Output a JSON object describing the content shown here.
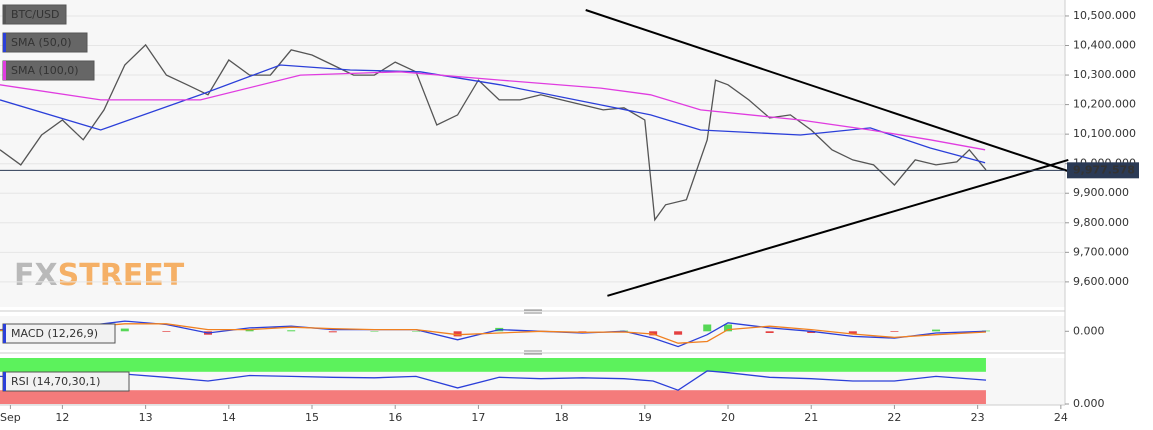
{
  "shared_x": {
    "xlim": [
      11.25,
      24.05
    ],
    "xticks": [
      {
        "value": 11.375,
        "label": "Sep"
      },
      12,
      13,
      14,
      15,
      16,
      17,
      18,
      19,
      20,
      21,
      22,
      23,
      24
    ]
  },
  "chart_data": [
    {
      "type": "line",
      "watermark": [
        "FX",
        "STREET"
      ],
      "grid": true,
      "ylim": [
        9515,
        10554
      ],
      "yticks": [
        {
          "value": 9600,
          "label": "9,600.000"
        },
        {
          "value": 9700,
          "label": "9,700.000"
        },
        {
          "value": 9800,
          "label": "9,800.000"
        },
        {
          "value": 9900,
          "label": "9,900.000"
        },
        {
          "value": 10000,
          "label": "10,000.000"
        },
        {
          "value": 10100,
          "label": "10,100.000"
        },
        {
          "value": 10200,
          "label": "10,200.000"
        },
        {
          "value": 10300,
          "label": "10,300.000"
        },
        {
          "value": 10400,
          "label": "10,400.000"
        },
        {
          "value": 10500,
          "label": "10,500.000"
        }
      ],
      "last_value": {
        "value": 9977.578,
        "label": "9,977.578"
      },
      "series": [
        {
          "name": "BTC/USD",
          "color": "#555555",
          "x": [
            11.25,
            11.5,
            11.75,
            12,
            12.25,
            12.5,
            12.75,
            13,
            13.25,
            13.5,
            13.75,
            14,
            14.25,
            14.5,
            14.75,
            15,
            15.25,
            15.5,
            15.75,
            16,
            16.25,
            16.5,
            16.75,
            17,
            17.25,
            17.5,
            17.75,
            18,
            18.25,
            18.5,
            18.75,
            19,
            19.12,
            19.25,
            19.5,
            19.75,
            19.85,
            20,
            20.25,
            20.5,
            20.75,
            21,
            21.25,
            21.5,
            21.75,
            22,
            22.25,
            22.5,
            22.75,
            22.9,
            23.1
          ],
          "values": [
            10047,
            9996,
            10097,
            10148,
            10081,
            10182,
            10334,
            10402,
            10300,
            10267,
            10233,
            10351,
            10300,
            10300,
            10385,
            10368,
            10334,
            10300,
            10300,
            10344,
            10311,
            10131,
            10165,
            10283,
            10216,
            10216,
            10233,
            10216,
            10199,
            10182,
            10189,
            10148,
            9810,
            9861,
            9878,
            10081,
            10283,
            10267,
            10216,
            10155,
            10165,
            10114,
            10047,
            10013,
            9996,
            9928,
            10013,
            9996,
            10006,
            10047,
            9979
          ]
        },
        {
          "name": "SMA (50,0)",
          "color": "#2b3fd9",
          "x": [
            11.25,
            12.46,
            13.66,
            14.62,
            15.46,
            16.3,
            17.26,
            18.47,
            19.07,
            19.67,
            20.87,
            21.71,
            22.43,
            23.09
          ],
          "values": [
            10216,
            10114,
            10233,
            10334,
            10317,
            10311,
            10267,
            10199,
            10165,
            10114,
            10097,
            10121,
            10053,
            10003
          ]
        },
        {
          "name": "SMA (100,0)",
          "color": "#e03ce0",
          "x": [
            11.25,
            12.46,
            13.66,
            14.86,
            16.06,
            17.26,
            18.47,
            19.07,
            19.67,
            20.87,
            21.71,
            22.43,
            23.09
          ],
          "values": [
            10267,
            10216,
            10216,
            10300,
            10311,
            10283,
            10256,
            10233,
            10182,
            10148,
            10114,
            10081,
            10047
          ]
        }
      ],
      "trendlines": [
        {
          "color": "#000000",
          "x": [
            18.29,
            24.12
          ],
          "y": [
            10520,
            9972
          ]
        },
        {
          "color": "#000000",
          "x": [
            18.55,
            24.09
          ],
          "y": [
            9553,
            10013
          ]
        }
      ]
    },
    {
      "type": "line",
      "title": "MACD (12,26,9)",
      "ylim": [
        -55,
        45
      ],
      "yticks": [
        {
          "value": 0,
          "label": "0.000"
        }
      ],
      "series": [
        {
          "style": "histogram",
          "color": "#3ad13a",
          "negative_color": "#e02020",
          "x": [
            11.25,
            11.75,
            12.25,
            12.75,
            13.25,
            13.75,
            14.25,
            14.75,
            15.25,
            15.75,
            16.25,
            16.75,
            17.25,
            17.75,
            18.25,
            18.75,
            19.1,
            19.4,
            19.75,
            20,
            20.5,
            21,
            21.5,
            22,
            22.5,
            23.1
          ],
          "values": [
            2,
            2,
            3,
            8,
            -2,
            -10,
            5,
            3,
            -3,
            0,
            0,
            -15,
            10,
            0,
            -2,
            2,
            -12,
            -10,
            20,
            20,
            -5,
            -5,
            -7,
            -2,
            5,
            2
          ]
        },
        {
          "color": "#2b3fd9",
          "x": [
            11.25,
            11.75,
            12.25,
            12.75,
            13.25,
            13.75,
            14.25,
            14.75,
            15.25,
            15.75,
            16.25,
            16.75,
            17.25,
            17.75,
            18.25,
            18.75,
            19.1,
            19.4,
            19.75,
            20,
            20.5,
            21,
            21.5,
            22,
            22.5,
            23.1
          ],
          "values": [
            5,
            10,
            15,
            30,
            20,
            -5,
            10,
            15,
            5,
            5,
            5,
            -25,
            5,
            0,
            -5,
            0,
            -20,
            -45,
            -10,
            25,
            10,
            0,
            -15,
            -20,
            -5,
            0
          ]
        },
        {
          "color": "#f08020",
          "x": [
            11.25,
            11.75,
            12.25,
            12.75,
            13.25,
            13.75,
            14.25,
            14.75,
            15.25,
            15.75,
            16.25,
            16.75,
            17.25,
            17.75,
            18.25,
            18.75,
            19.1,
            19.4,
            19.75,
            20,
            20.5,
            21,
            21.5,
            22,
            22.5,
            23.1
          ],
          "values": [
            3,
            8,
            12,
            22,
            22,
            5,
            5,
            12,
            8,
            5,
            5,
            -10,
            -5,
            0,
            -3,
            -2,
            -8,
            -35,
            -30,
            5,
            15,
            5,
            -8,
            -18,
            -10,
            -2
          ]
        }
      ]
    },
    {
      "type": "line",
      "title": "RSI (14,70,30,1)",
      "ylim": [
        0,
        100
      ],
      "yticks": [
        {
          "value": 0,
          "label": "0.000"
        }
      ],
      "bands": [
        {
          "from": 70,
          "to": 100,
          "color": "#5cf25c"
        },
        {
          "from": 0,
          "to": 30,
          "color": "#f47b7b"
        }
      ],
      "series": [
        {
          "color": "#2b3fd9",
          "x": [
            11.25,
            11.75,
            12.25,
            12.75,
            13.25,
            13.75,
            14.25,
            14.75,
            15.25,
            15.75,
            16.25,
            16.75,
            17.25,
            17.75,
            18.25,
            18.75,
            19.1,
            19.4,
            19.75,
            20,
            20.5,
            21,
            21.5,
            22,
            22.5,
            23.1
          ],
          "values": [
            60,
            58,
            62,
            65,
            58,
            50,
            62,
            60,
            58,
            57,
            60,
            35,
            58,
            55,
            57,
            55,
            50,
            30,
            72,
            68,
            58,
            55,
            50,
            50,
            60,
            52
          ]
        }
      ]
    }
  ]
}
